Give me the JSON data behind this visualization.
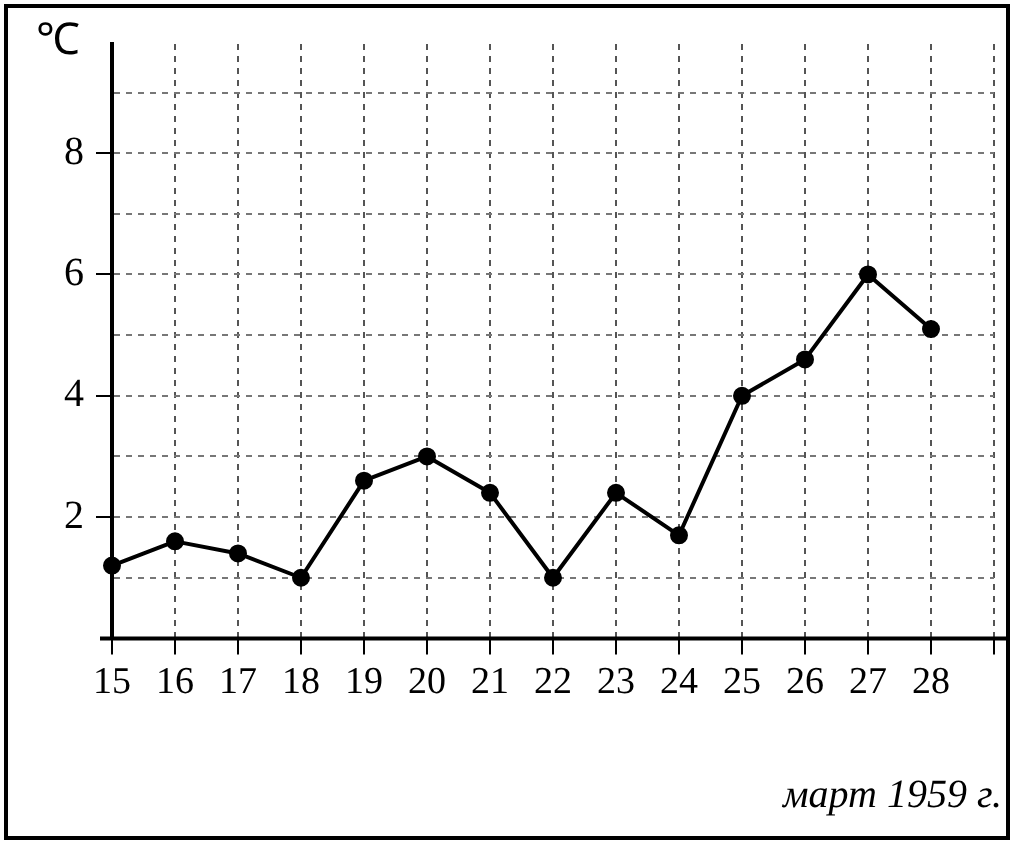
{
  "chart_data": {
    "type": "line",
    "xlabel": "март 1959 г.",
    "ylabel": "℃",
    "categories": [
      "15",
      "16",
      "17",
      "18",
      "19",
      "20",
      "21",
      "22",
      "23",
      "24",
      "25",
      "26",
      "27",
      "28",
      null
    ],
    "values": [
      1.2,
      1.6,
      1.4,
      1.0,
      2.6,
      3.0,
      2.4,
      1.0,
      2.4,
      1.7,
      4.0,
      4.6,
      6.0,
      5.1,
      null
    ],
    "color": "#000000",
    "marker": "circle",
    "line_style": "solid",
    "grid": true,
    "legend": false,
    "ylim": [
      0,
      9.8
    ],
    "yticks": [
      {
        "value": 1,
        "label": null
      },
      2,
      {
        "value": 3,
        "label": null
      },
      4,
      {
        "value": 5,
        "label": null
      },
      6,
      {
        "value": 7,
        "label": null
      },
      8,
      {
        "value": 9,
        "label": null
      }
    ]
  }
}
